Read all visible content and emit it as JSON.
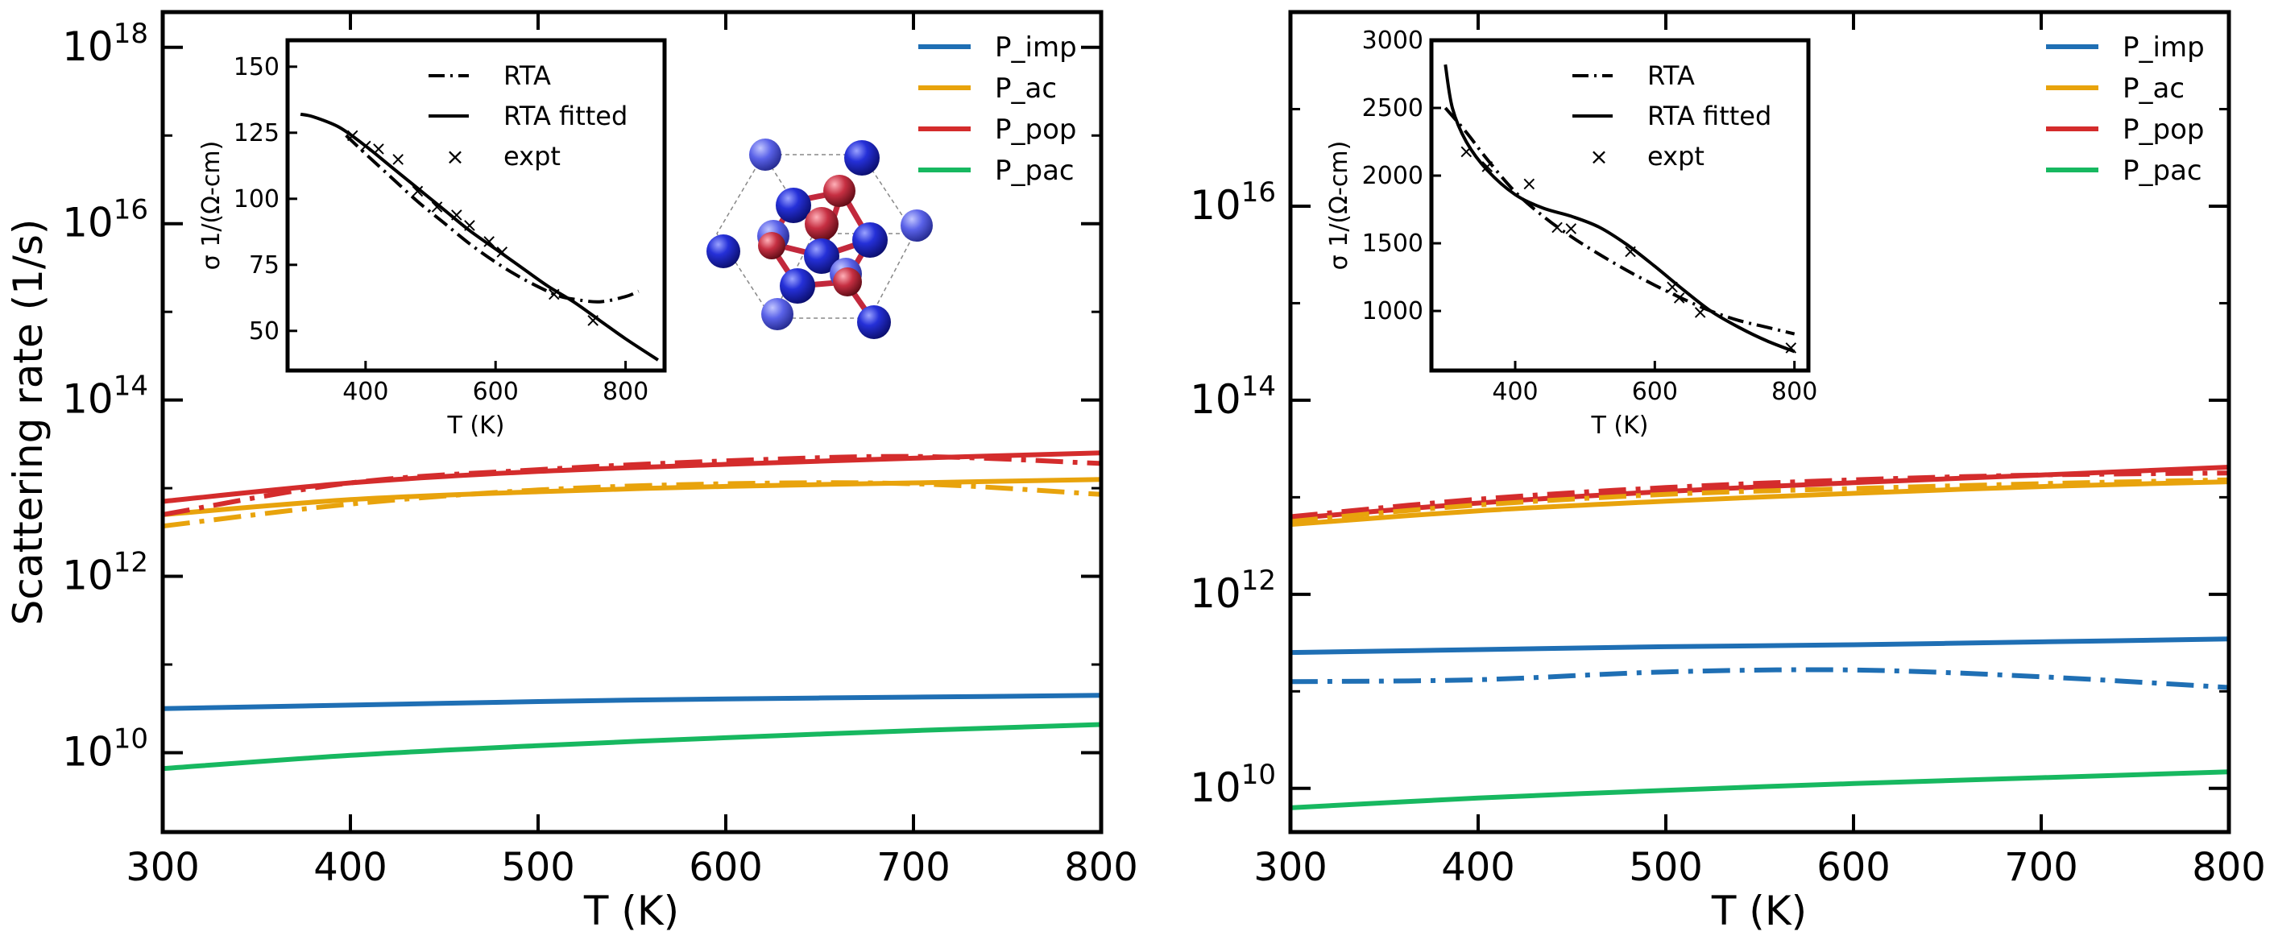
{
  "colors": {
    "imp": "#1f6fb4",
    "ac": "#e8a30c",
    "pop": "#d42c2c",
    "pac": "#17b860",
    "ink": "#000000",
    "atom_blue": "#1a22c8",
    "atom_red": "#c42a3a"
  },
  "main_axis": {
    "xlabel": "T (K)",
    "ylabel": "Scattering rate (1/s)",
    "yexp_base": "10",
    "xticks": [
      300,
      400,
      500,
      600,
      700,
      800
    ]
  },
  "inset_axis": {
    "xlabel": "T (K)",
    "ylabel": "σ 1/(Ω-cm)",
    "legend": [
      "RTA",
      "RTA fitted",
      "expt"
    ]
  },
  "chart_data": [
    {
      "type": "line",
      "xlabel": "T (K)",
      "ylabel": "Scattering rate (1/s)",
      "xlim": [
        300,
        800
      ],
      "ylim_log10": [
        9.1,
        18.4
      ],
      "yscale": "log",
      "yticks_exp": [
        10,
        12,
        14,
        16,
        18
      ],
      "legend": {
        "location": "top-right",
        "entries": [
          "P_imp",
          "P_ac",
          "P_pop",
          "P_pac"
        ]
      },
      "x": [
        300,
        400,
        500,
        600,
        700,
        800
      ],
      "series": [
        {
          "name": "P_imp",
          "key": "imp",
          "style": "solid",
          "log10_values": [
            10.5,
            10.54,
            10.58,
            10.61,
            10.63,
            10.65
          ]
        },
        {
          "name": "P_ac",
          "key": "ac",
          "style": "solid",
          "log10_values": [
            12.7,
            12.87,
            12.96,
            13.02,
            13.06,
            13.1
          ]
        },
        {
          "name": "P_pop",
          "key": "pop",
          "style": "solid",
          "log10_values": [
            12.85,
            13.06,
            13.19,
            13.27,
            13.34,
            13.4
          ]
        },
        {
          "name": "P_pac",
          "key": "pac",
          "style": "solid",
          "log10_values": [
            9.82,
            9.97,
            10.08,
            10.17,
            10.25,
            10.32
          ]
        },
        {
          "key": "ac",
          "style": "dashdot",
          "log10_values": [
            12.57,
            12.82,
            12.98,
            13.05,
            13.05,
            12.93
          ]
        },
        {
          "key": "pop",
          "style": "dashdot",
          "log10_values": [
            12.7,
            13.06,
            13.21,
            13.31,
            13.36,
            13.28
          ]
        }
      ]
    },
    {
      "type": "line",
      "xlabel": "T (K)",
      "ylabel": "",
      "xlim": [
        300,
        800
      ],
      "ylim_log10": [
        9.55,
        18.0
      ],
      "yscale": "log",
      "yticks_exp": [
        10,
        12,
        14,
        16
      ],
      "legend": {
        "location": "top-right",
        "entries": [
          "P_imp",
          "P_ac",
          "P_pop",
          "P_pac"
        ]
      },
      "x": [
        300,
        400,
        500,
        600,
        700,
        800
      ],
      "series": [
        {
          "name": "P_imp",
          "key": "imp",
          "style": "solid",
          "log10_values": [
            11.4,
            11.43,
            11.46,
            11.48,
            11.51,
            11.54
          ]
        },
        {
          "name": "P_ac",
          "key": "ac",
          "style": "solid",
          "log10_values": [
            12.72,
            12.86,
            12.96,
            13.04,
            13.11,
            13.16
          ]
        },
        {
          "name": "P_pop",
          "key": "pop",
          "style": "solid",
          "log10_values": [
            12.78,
            12.94,
            13.06,
            13.15,
            13.23,
            13.31
          ]
        },
        {
          "name": "P_pac",
          "key": "pac",
          "style": "solid",
          "log10_values": [
            9.8,
            9.9,
            9.98,
            10.05,
            10.11,
            10.17
          ]
        },
        {
          "key": "imp",
          "style": "dashdot",
          "log10_values": [
            11.1,
            11.12,
            11.2,
            11.22,
            11.15,
            11.04
          ]
        },
        {
          "key": "ac",
          "style": "dashdot",
          "log10_values": [
            12.76,
            12.92,
            13.03,
            13.09,
            13.14,
            13.18
          ]
        },
        {
          "key": "pop",
          "style": "dashdot",
          "log10_values": [
            12.8,
            12.98,
            13.1,
            13.18,
            13.23,
            13.25
          ]
        }
      ]
    },
    {
      "type": "line",
      "xlabel": "T (K)",
      "ylabel": "σ 1/(Ω-cm)",
      "xlim": [
        280,
        860
      ],
      "ylim": [
        35,
        160
      ],
      "xticks": [
        400,
        600,
        800
      ],
      "yticks": [
        50,
        75,
        100,
        125,
        150
      ],
      "legend": {
        "location": "top-right",
        "entries": [
          "RTA",
          "RTA fitted",
          "expt"
        ]
      },
      "series": [
        {
          "name": "RTA",
          "style": "dashdot",
          "x": [
            370,
            400,
            440,
            480,
            520,
            560,
            600,
            640,
            680,
            700,
            720,
            760,
            800,
            820
          ],
          "y": [
            124,
            117,
            108,
            99,
            91,
            83,
            76,
            70,
            65,
            63,
            62,
            61,
            63,
            65
          ]
        },
        {
          "name": "RTA fitted",
          "style": "solid",
          "x": [
            300,
            320,
            360,
            400,
            440,
            480,
            520,
            560,
            600,
            640,
            680,
            720,
            760,
            800,
            850
          ],
          "y": [
            132,
            131,
            127,
            120,
            112,
            104,
            96,
            88,
            81,
            74,
            67,
            61,
            54,
            47,
            39
          ]
        },
        {
          "name": "expt",
          "style": "markers",
          "x": [
            380,
            400,
            420,
            450,
            480,
            510,
            540,
            560,
            590,
            610,
            690,
            750
          ],
          "y": [
            124,
            120,
            119,
            115,
            103,
            97,
            94,
            90,
            84,
            80,
            64,
            54
          ]
        }
      ]
    },
    {
      "type": "line",
      "xlabel": "T (K)",
      "ylabel": "σ 1/(Ω-cm)",
      "xlim": [
        280,
        820
      ],
      "ylim": [
        560,
        3000
      ],
      "xticks": [
        400,
        600,
        800
      ],
      "yticks": [
        1000,
        1500,
        2000,
        2500,
        3000
      ],
      "legend": {
        "location": "top-right",
        "entries": [
          "RTA",
          "RTA fitted",
          "expt"
        ]
      },
      "series": [
        {
          "name": "RTA",
          "style": "dashdot",
          "x": [
            300,
            330,
            360,
            400,
            440,
            480,
            520,
            560,
            600,
            640,
            680,
            720,
            760,
            800
          ],
          "y": [
            2500,
            2320,
            2120,
            1880,
            1700,
            1550,
            1420,
            1300,
            1190,
            1090,
            1000,
            930,
            880,
            830
          ]
        },
        {
          "name": "RTA fitted",
          "style": "solid",
          "x": [
            300,
            310,
            330,
            360,
            400,
            440,
            480,
            520,
            560,
            600,
            640,
            680,
            720,
            760,
            800
          ],
          "y": [
            2820,
            2500,
            2250,
            2040,
            1860,
            1760,
            1700,
            1620,
            1490,
            1330,
            1160,
            1000,
            880,
            780,
            700
          ]
        },
        {
          "name": "expt",
          "style": "markers",
          "x": [
            330,
            360,
            420,
            460,
            480,
            565,
            625,
            635,
            665,
            795
          ],
          "y": [
            2180,
            2070,
            1940,
            1620,
            1610,
            1440,
            1180,
            1100,
            990,
            730
          ]
        }
      ]
    }
  ]
}
